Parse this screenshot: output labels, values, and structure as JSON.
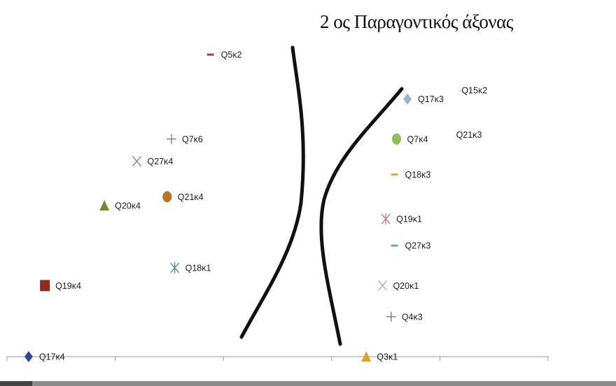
{
  "title": "2 ος Παραγοντικός άξονας",
  "chart_data": {
    "type": "scatter",
    "title": "2 ος Παραγοντικός άξονας",
    "xlabel": "",
    "ylabel": "",
    "xlim": [
      -2.5,
      2.5
    ],
    "ylim": [
      0,
      3.7
    ],
    "x_ticks": [
      -2.5,
      -1.5,
      -0.5,
      0.5,
      1.5,
      2.5
    ],
    "grid": false,
    "legend": "none",
    "points": [
      {
        "label": "Q5κ2",
        "x": -0.62,
        "y": 3.4,
        "marker": "dash",
        "color": "#b03a2e"
      },
      {
        "label": "Q7κ6",
        "x": -0.98,
        "y": 2.45,
        "marker": "plus",
        "color": "#5a7f8c"
      },
      {
        "label": "Q27κ4",
        "x": -1.3,
        "y": 2.2,
        "marker": "x",
        "color": "#7b7fa8"
      },
      {
        "label": "Q21κ4",
        "x": -1.02,
        "y": 1.8,
        "marker": "circle",
        "color": "#b5762a"
      },
      {
        "label": "Q20κ4",
        "x": -1.6,
        "y": 1.7,
        "marker": "triangle",
        "color": "#6a8f2a"
      },
      {
        "label": "Q18κ1",
        "x": -0.95,
        "y": 1.0,
        "marker": "asterisk",
        "color": "#4a90a4"
      },
      {
        "label": "Q19κ4",
        "x": -2.15,
        "y": 0.8,
        "marker": "square",
        "color": "#8b2e22"
      },
      {
        "label": "Q17κ4",
        "x": -2.3,
        "y": 0.0,
        "marker": "diamond",
        "color": "#2e4a8c"
      },
      {
        "label": "Q17κ3",
        "x": 1.2,
        "y": 2.9,
        "marker": "diamond",
        "color": "#9fb0d8"
      },
      {
        "label": "Q15κ2",
        "x": 1.7,
        "y": 3.0,
        "marker": "none",
        "color": "#1a1a1a"
      },
      {
        "label": "Q21κ3",
        "x": 1.65,
        "y": 2.5,
        "marker": "none",
        "color": "#1a1a1a"
      },
      {
        "label": "Q7κ4",
        "x": 1.1,
        "y": 2.45,
        "marker": "circle",
        "color": "#8fbf5a"
      },
      {
        "label": "Q18κ3",
        "x": 1.08,
        "y": 2.05,
        "marker": "dash",
        "color": "#e3a35c"
      },
      {
        "label": "Q19κ1",
        "x": 1.0,
        "y": 1.55,
        "marker": "asterisk",
        "color": "#c08080"
      },
      {
        "label": "Q27κ3",
        "x": 1.08,
        "y": 1.25,
        "marker": "dash",
        "color": "#6aa8c8"
      },
      {
        "label": "Q20κ1",
        "x": 0.97,
        "y": 0.8,
        "marker": "x",
        "color": "#9ab8d8"
      },
      {
        "label": "Q4κ3",
        "x": 1.05,
        "y": 0.45,
        "marker": "plus",
        "color": "#707070"
      },
      {
        "label": "Q3κ1",
        "x": 0.82,
        "y": 0.0,
        "marker": "triangle",
        "color": "#e0a030"
      }
    ]
  }
}
